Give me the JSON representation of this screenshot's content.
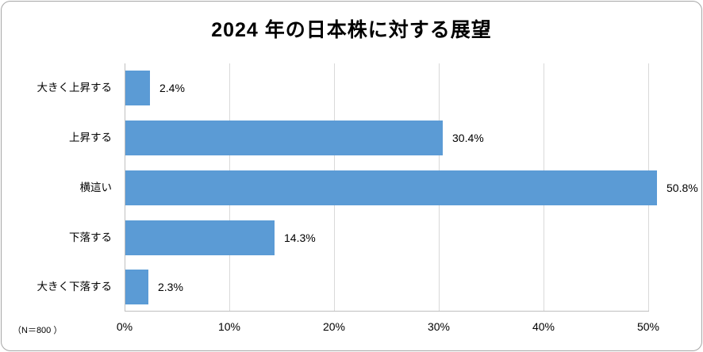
{
  "chart_data": {
    "type": "bar",
    "orientation": "horizontal",
    "title": "2024  年の日本株に対する展望",
    "categories": [
      "大きく上昇する",
      "上昇する",
      "横這い",
      "下落する",
      "大きく下落する"
    ],
    "values": [
      2.4,
      30.4,
      50.8,
      14.3,
      2.3
    ],
    "value_labels": [
      "2.4%",
      "30.4%",
      "50.8%",
      "14.3%",
      "2.3%"
    ],
    "xlabel": "",
    "ylabel": "",
    "xlim": [
      0,
      50
    ],
    "x_ticks": [
      "0%",
      "10%",
      "20%",
      "30%",
      "40%",
      "50%"
    ],
    "grid": "vertical",
    "legend": "none",
    "note": "（N＝800 ）",
    "bar_color": "#5b9bd5"
  }
}
